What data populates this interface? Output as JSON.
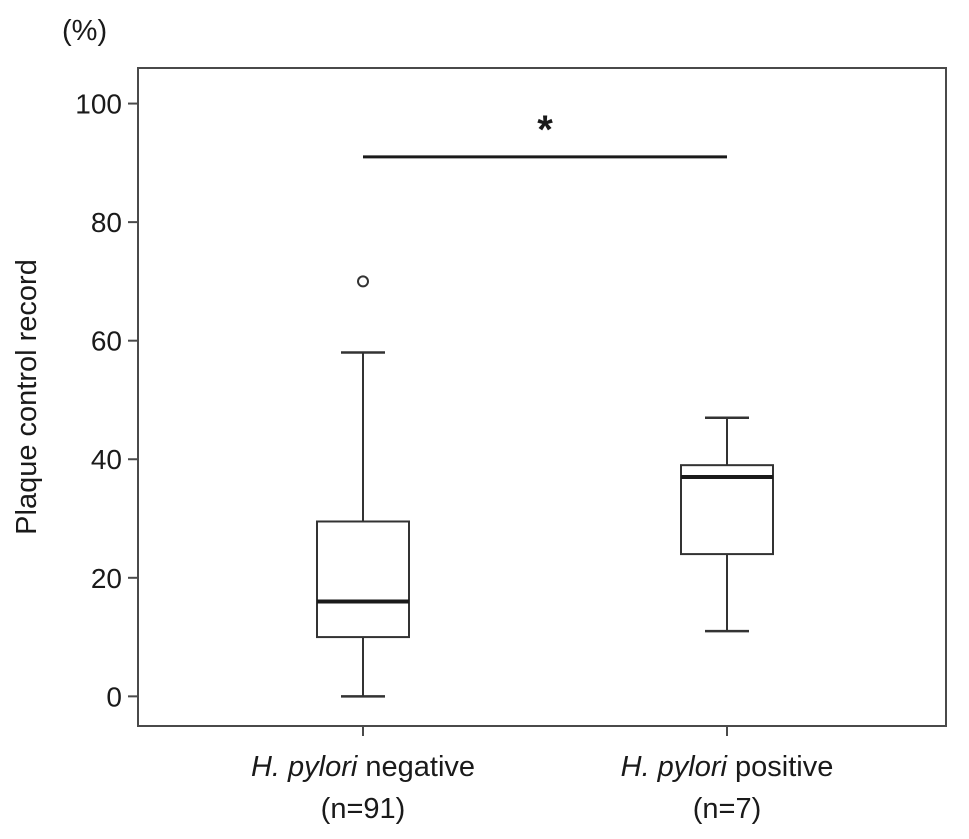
{
  "chart_data": {
    "type": "box",
    "y_unit": "(%)",
    "ylabel": "Plaque control record",
    "ylim": [
      -5,
      106
    ],
    "yticks": [
      "0",
      "20",
      "40",
      "60",
      "80",
      "100"
    ],
    "ytick_values": [
      0,
      20,
      40,
      60,
      80,
      100
    ],
    "grid": false,
    "categories": [
      {
        "italic": "H. pylori",
        "text": " negative",
        "n_label": "(n=91)"
      },
      {
        "italic": "H. pylori",
        "text": " positive",
        "n_label": "(n=7)"
      }
    ],
    "boxes": [
      {
        "whisker_low": 0,
        "q1": 10,
        "median": 16,
        "q3": 29.5,
        "whisker_high": 58,
        "outliers": [
          70
        ]
      },
      {
        "whisker_low": 11,
        "q1": 24,
        "median": 37,
        "q3": 39,
        "whisker_high": 47,
        "outliers": []
      }
    ],
    "significance": {
      "label": "*",
      "y": 91,
      "between": [
        0,
        1
      ]
    }
  }
}
